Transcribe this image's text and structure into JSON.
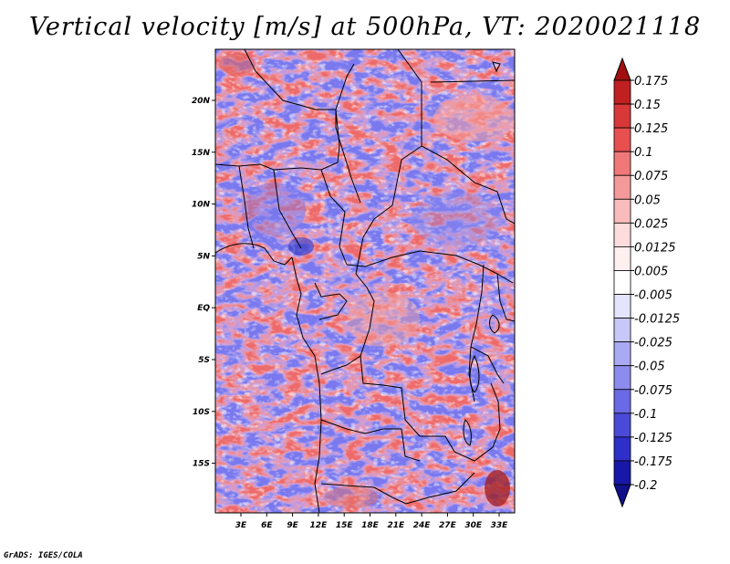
{
  "title": "Vertical velocity [m/s] at 500hPa, VT: 2020021118",
  "credit": "GrADS: IGES/COLA",
  "map": {
    "lat_ticks": [
      "20N",
      "15N",
      "10N",
      "5N",
      "EQ",
      "5S",
      "10S",
      "15S"
    ],
    "lon_ticks": [
      "3E",
      "6E",
      "9E",
      "12E",
      "15E",
      "18E",
      "21E",
      "24E",
      "27E",
      "30E",
      "33E"
    ]
  },
  "colorbar": {
    "labels": [
      "0.175",
      "0.15",
      "0.125",
      "0.1",
      "0.075",
      "0.05",
      "0.025",
      "0.0125",
      "0.005",
      "-0.005",
      "-0.0125",
      "-0.025",
      "-0.05",
      "-0.075",
      "-0.1",
      "-0.125",
      "-0.175",
      "-0.2"
    ],
    "colors": [
      "#a01010",
      "#c02020",
      "#d83838",
      "#e85050",
      "#f07878",
      "#f49a9a",
      "#f8bcbc",
      "#fcdcdc",
      "#fff0f0",
      "#ffffff",
      "#e4e4fc",
      "#c8c8f8",
      "#aaaaf4",
      "#8c8cee",
      "#6a6ae6",
      "#4a4ad8",
      "#2e2ec8",
      "#1818a8",
      "#0a0a80"
    ],
    "extend_top_color": "#a01010",
    "extend_bottom_color": "#10108a"
  }
}
